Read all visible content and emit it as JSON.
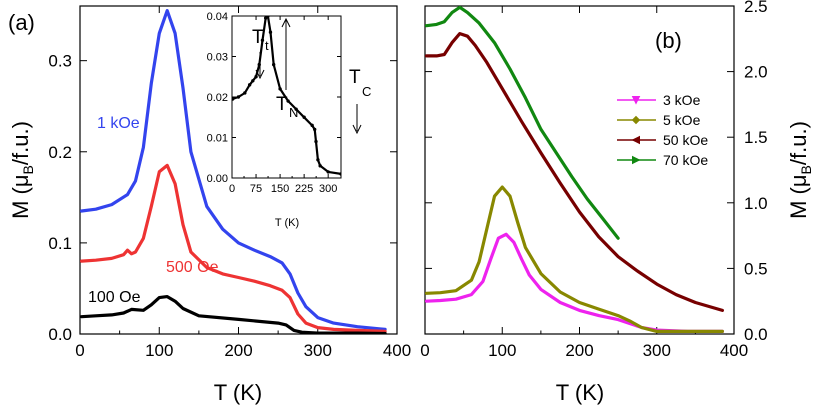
{
  "chart_data": [
    {
      "panel": "a",
      "type": "line",
      "panel_label": "(a)",
      "xlabel": "T (K)",
      "ylabel": "M (μB/f.u.)",
      "xlim": [
        0,
        400
      ],
      "ylim": [
        0,
        0.36
      ],
      "xticks": [
        0,
        100,
        200,
        300,
        400
      ],
      "yticks": [
        0.0,
        0.1,
        0.2,
        0.3
      ],
      "series": [
        {
          "name": "1 kOe",
          "color": "#3344ee",
          "x": [
            2,
            20,
            40,
            60,
            70,
            80,
            90,
            100,
            110,
            120,
            130,
            140,
            160,
            180,
            200,
            220,
            240,
            255,
            265,
            275,
            285,
            300,
            320,
            350,
            385
          ],
          "y": [
            0.135,
            0.137,
            0.142,
            0.153,
            0.168,
            0.205,
            0.275,
            0.33,
            0.355,
            0.33,
            0.27,
            0.2,
            0.14,
            0.115,
            0.1,
            0.092,
            0.085,
            0.078,
            0.066,
            0.045,
            0.03,
            0.018,
            0.012,
            0.008,
            0.005
          ]
        },
        {
          "name": "500 Oe",
          "color": "#ee3333",
          "x": [
            2,
            20,
            40,
            55,
            60,
            65,
            70,
            80,
            90,
            100,
            110,
            120,
            130,
            140,
            160,
            180,
            200,
            220,
            240,
            255,
            265,
            275,
            285,
            300,
            320,
            350,
            385
          ],
          "y": [
            0.08,
            0.081,
            0.083,
            0.087,
            0.092,
            0.088,
            0.09,
            0.105,
            0.14,
            0.178,
            0.185,
            0.165,
            0.12,
            0.09,
            0.073,
            0.066,
            0.062,
            0.058,
            0.053,
            0.048,
            0.04,
            0.022,
            0.012,
            0.007,
            0.005,
            0.004,
            0.003
          ]
        },
        {
          "name": "100 Oe",
          "color": "#000000",
          "x": [
            2,
            20,
            40,
            55,
            65,
            80,
            90,
            100,
            110,
            120,
            130,
            150,
            200,
            250,
            260,
            270,
            280,
            300,
            350,
            385
          ],
          "y": [
            0.019,
            0.02,
            0.021,
            0.023,
            0.027,
            0.026,
            0.032,
            0.04,
            0.041,
            0.036,
            0.028,
            0.02,
            0.016,
            0.012,
            0.01,
            0.004,
            0.002,
            0.001,
            0.001,
            0.0005
          ]
        }
      ],
      "inset": {
        "type": "line",
        "xlabel": "T (K)",
        "xlim": [
          0,
          340
        ],
        "ylim": [
          0,
          0.04
        ],
        "xticks": [
          0,
          75,
          150,
          225,
          300
        ],
        "yticks": [
          0.0,
          0.01,
          0.02,
          0.03,
          0.04
        ],
        "ytick_labels": [
          "0.00",
          "0.01",
          "0.02",
          "0.03",
          "0.04"
        ],
        "series": [
          {
            "name": "100 Oe",
            "color": "#000000",
            "x": [
              2,
              20,
              40,
              55,
              65,
              75,
              85,
              95,
              105,
              112,
              120,
              130,
              150,
              175,
              200,
              225,
              250,
              258,
              262,
              268,
              275,
              300,
              340
            ],
            "y": [
              0.0195,
              0.02,
              0.021,
              0.023,
              0.024,
              0.025,
              0.028,
              0.034,
              0.0395,
              0.04,
              0.036,
              0.028,
              0.022,
              0.019,
              0.017,
              0.015,
              0.013,
              0.012,
              0.009,
              0.0045,
              0.003,
              0.0015,
              0.001
            ]
          }
        ],
        "annotations": [
          {
            "label": "T",
            "sub": "t",
            "x": 55
          },
          {
            "label": "T",
            "sub": "N",
            "x": 112
          },
          {
            "label": "T",
            "sub": "C",
            "x": 262
          }
        ]
      }
    },
    {
      "panel": "b",
      "type": "line",
      "panel_label": "(b)",
      "xlabel": "T (K)",
      "ylabel": "M (μB/f.u.)",
      "xlim": [
        0,
        400
      ],
      "ylim": [
        0,
        2.5
      ],
      "xticks": [
        0,
        100,
        200,
        300,
        400
      ],
      "yticks": [
        0.0,
        0.5,
        1.0,
        1.5,
        2.0,
        2.5
      ],
      "legend_position": "center-right",
      "series": [
        {
          "name": "3 kOe",
          "color": "#ee22ee",
          "x": [
            2,
            20,
            40,
            60,
            75,
            85,
            95,
            105,
            115,
            125,
            135,
            150,
            175,
            200,
            225,
            250,
            265,
            280,
            300,
            340,
            385
          ],
          "y": [
            0.25,
            0.255,
            0.265,
            0.3,
            0.4,
            0.57,
            0.73,
            0.76,
            0.7,
            0.57,
            0.45,
            0.34,
            0.24,
            0.18,
            0.14,
            0.11,
            0.08,
            0.05,
            0.03,
            0.02,
            0.02
          ]
        },
        {
          "name": "5 kOe",
          "color": "#888800",
          "x": [
            2,
            20,
            40,
            60,
            70,
            80,
            90,
            100,
            110,
            120,
            130,
            150,
            175,
            200,
            225,
            250,
            265,
            280,
            300,
            340,
            385
          ],
          "y": [
            0.31,
            0.315,
            0.33,
            0.41,
            0.55,
            0.8,
            1.05,
            1.12,
            1.05,
            0.85,
            0.66,
            0.46,
            0.32,
            0.24,
            0.19,
            0.14,
            0.1,
            0.05,
            0.02,
            0.02,
            0.02
          ]
        },
        {
          "name": "50 kOe",
          "color": "#770000",
          "x": [
            2,
            15,
            25,
            35,
            45,
            55,
            65,
            80,
            100,
            125,
            150,
            175,
            200,
            225,
            250,
            275,
            300,
            325,
            350,
            385
          ],
          "y": [
            2.12,
            2.12,
            2.13,
            2.22,
            2.29,
            2.27,
            2.2,
            2.07,
            1.87,
            1.62,
            1.38,
            1.15,
            0.93,
            0.74,
            0.59,
            0.48,
            0.38,
            0.3,
            0.24,
            0.18
          ]
        },
        {
          "name": "70 kOe",
          "color": "#118811",
          "x": [
            2,
            15,
            25,
            35,
            45,
            55,
            70,
            90,
            110,
            130,
            150,
            170,
            190,
            210,
            230,
            250
          ],
          "y": [
            2.35,
            2.36,
            2.38,
            2.45,
            2.49,
            2.45,
            2.37,
            2.22,
            2.02,
            1.8,
            1.56,
            1.38,
            1.2,
            1.03,
            0.88,
            0.73
          ]
        }
      ]
    }
  ],
  "labels": {
    "curve_1koe": "1 kOe",
    "curve_500oe": "500 Oe",
    "curve_100oe": "100 Oe"
  }
}
